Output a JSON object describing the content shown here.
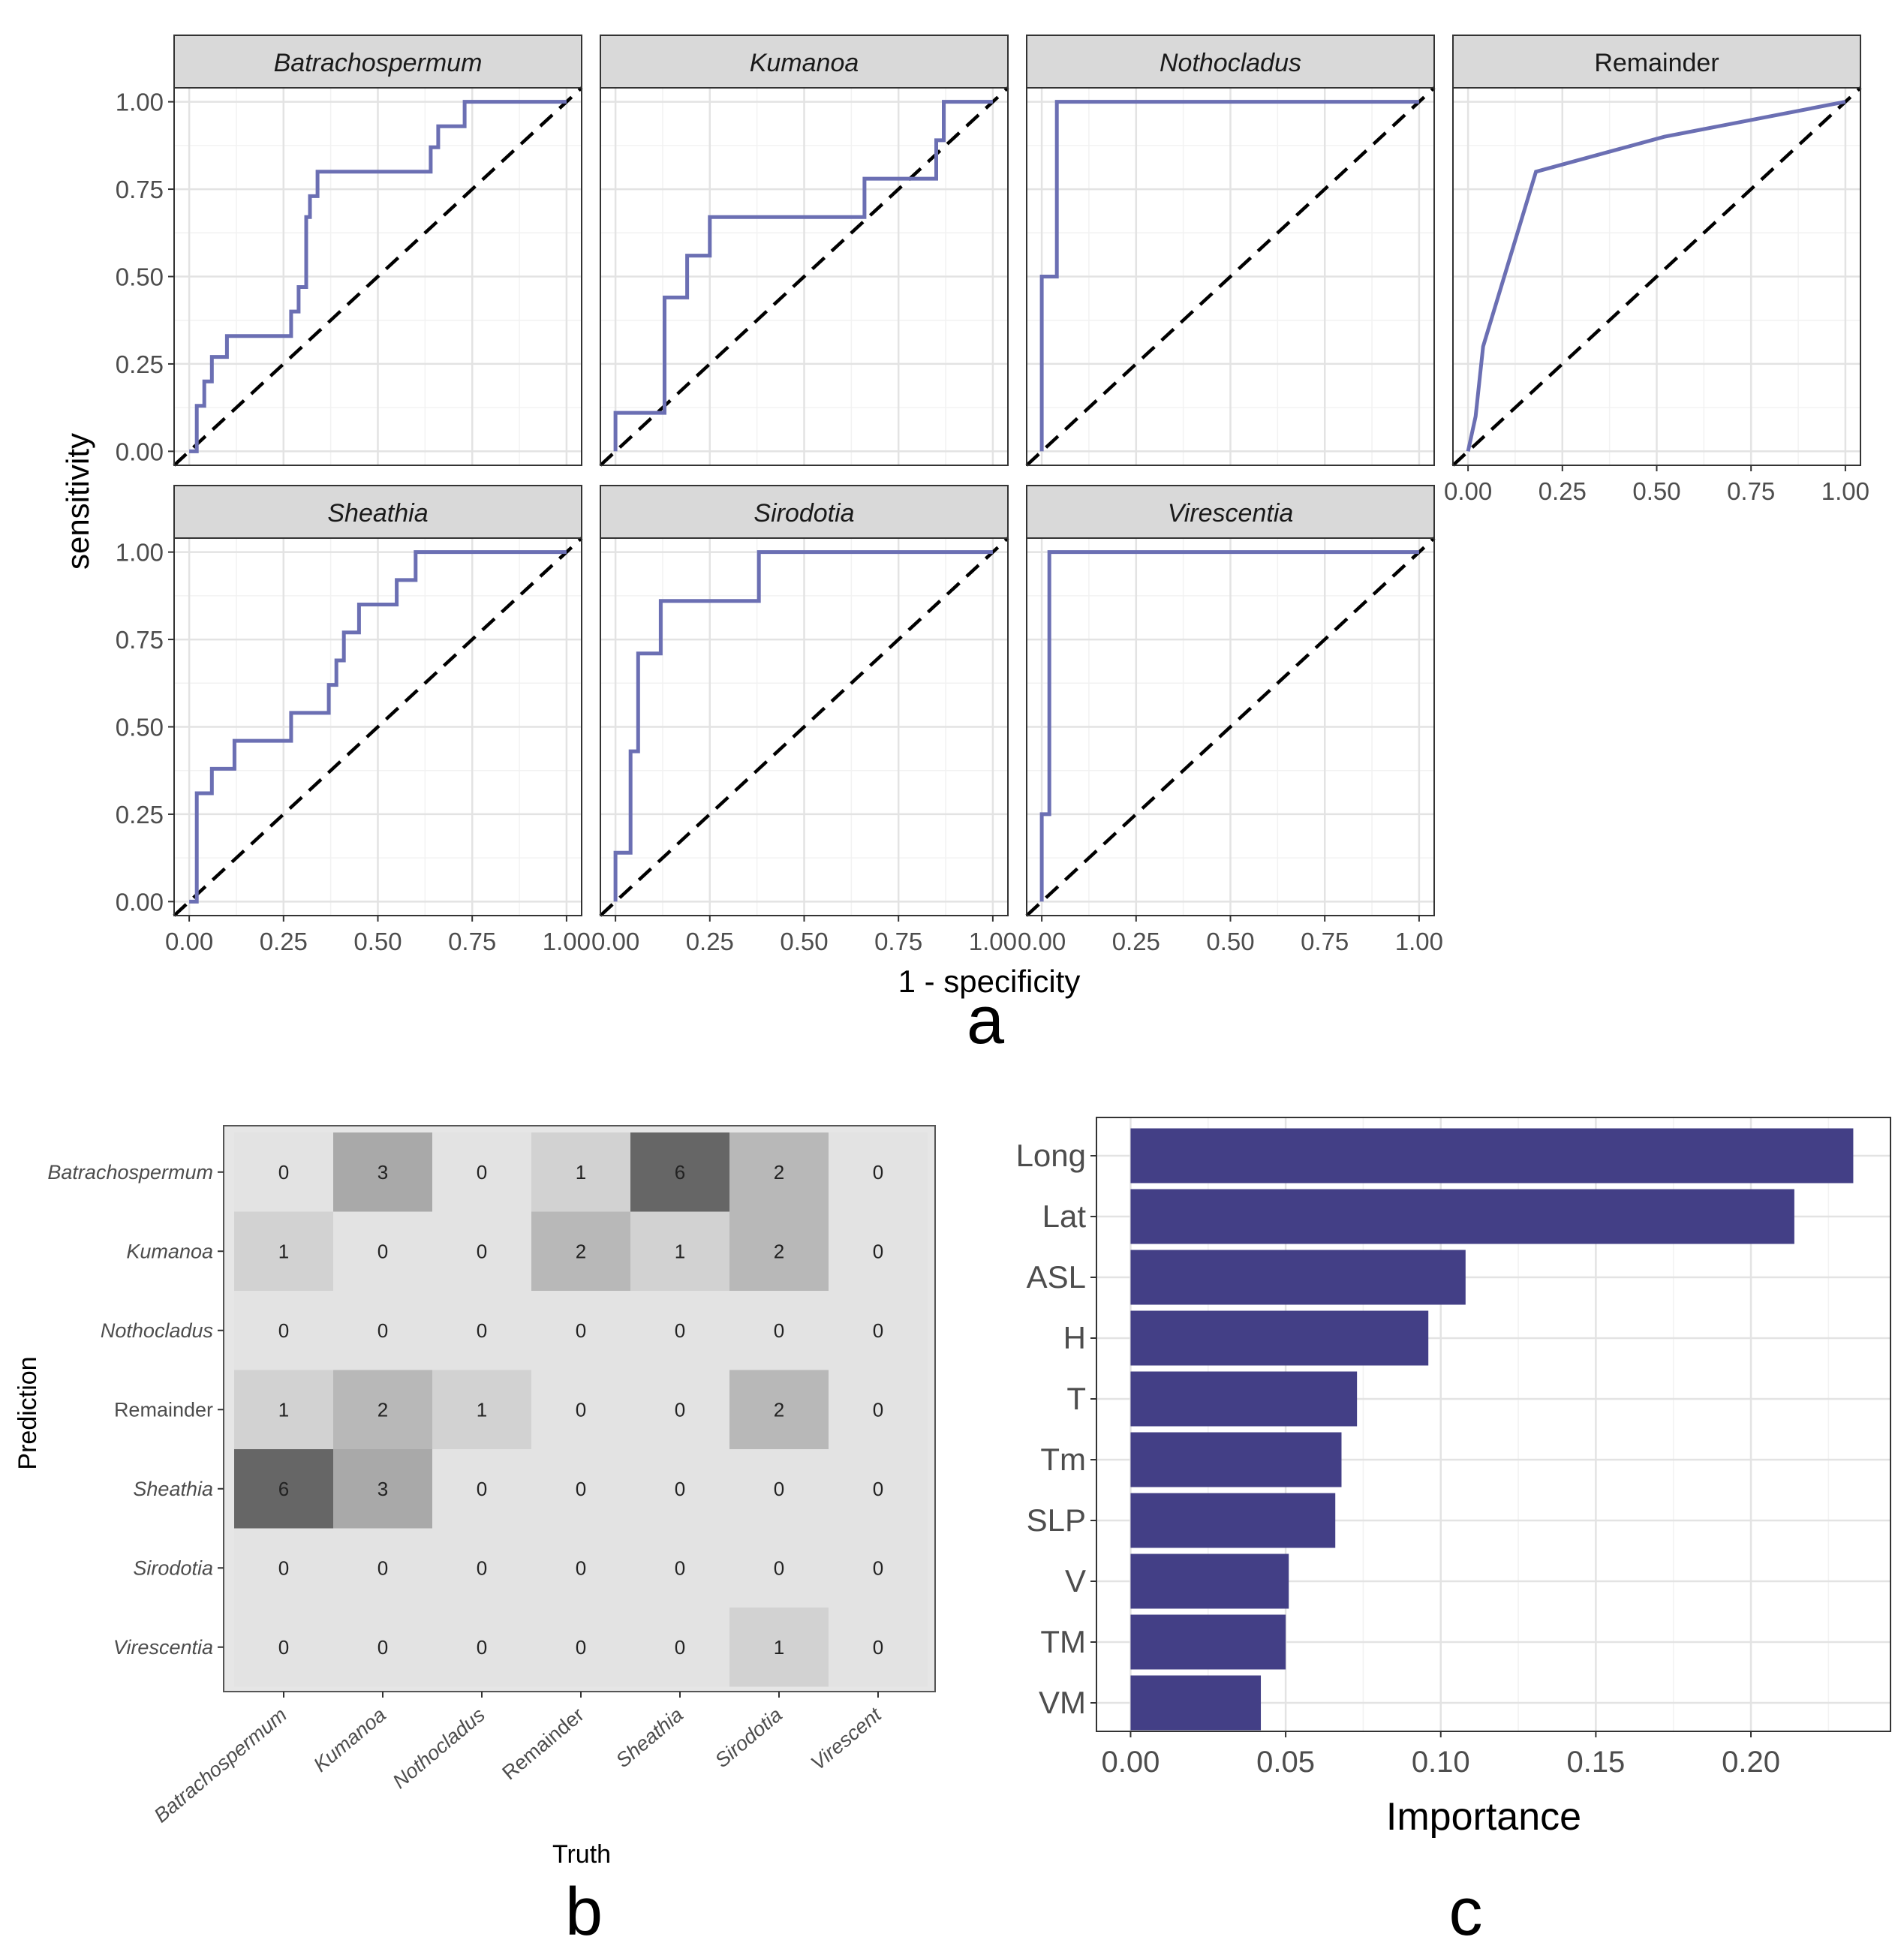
{
  "chart_data": [
    {
      "type": "line",
      "panel_label": "a",
      "xlabel": "1 - specificity",
      "ylabel": "sensitivity",
      "xlim": [
        0,
        1
      ],
      "ylim": [
        0,
        1
      ],
      "xticks": [
        "0.00",
        "0.25",
        "0.50",
        "0.75",
        "1.00"
      ],
      "yticks": [
        "0.00",
        "0.25",
        "0.50",
        "0.75",
        "1.00"
      ],
      "grid": true,
      "reference_line": "dashed diagonal",
      "line_color": "#6b6fb3",
      "facets": [
        {
          "title": "Batrachospermum",
          "italic": true,
          "x": [
            0,
            0.02,
            0.02,
            0.04,
            0.04,
            0.06,
            0.06,
            0.1,
            0.1,
            0.27,
            0.27,
            0.29,
            0.29,
            0.31,
            0.31,
            0.32,
            0.32,
            0.34,
            0.34,
            0.36,
            0.36,
            0.64,
            0.64,
            0.66,
            0.66,
            0.73,
            0.73,
            1
          ],
          "y": [
            0,
            0,
            0.13,
            0.13,
            0.2,
            0.2,
            0.27,
            0.27,
            0.33,
            0.33,
            0.4,
            0.4,
            0.47,
            0.47,
            0.67,
            0.67,
            0.73,
            0.73,
            0.8,
            0.8,
            0.8,
            0.8,
            0.87,
            0.87,
            0.93,
            0.93,
            1,
            1
          ]
        },
        {
          "title": "Kumanoa",
          "italic": true,
          "x": [
            0,
            0,
            0.13,
            0.13,
            0.19,
            0.19,
            0.25,
            0.25,
            0.66,
            0.66,
            0.85,
            0.85,
            0.87,
            0.87,
            1
          ],
          "y": [
            0,
            0.11,
            0.11,
            0.44,
            0.44,
            0.56,
            0.56,
            0.67,
            0.67,
            0.78,
            0.78,
            0.89,
            0.89,
            1,
            1
          ]
        },
        {
          "title": "Nothocladus",
          "italic": true,
          "x": [
            0,
            0,
            0.04,
            0.04,
            1
          ],
          "y": [
            0,
            0.5,
            0.5,
            1,
            1
          ]
        },
        {
          "title": "Remainder",
          "italic": false,
          "x": [
            0,
            0.02,
            0.02,
            0.04,
            0.04,
            0.18,
            0.18,
            0.52,
            0.52,
            1
          ],
          "y": [
            0,
            0.1,
            0.1,
            0.3,
            0.3,
            0.8,
            0.8,
            0.9,
            0.9,
            1
          ]
        },
        {
          "title": "Sheathia",
          "italic": true,
          "x": [
            0,
            0.02,
            0.02,
            0.06,
            0.06,
            0.12,
            0.12,
            0.27,
            0.27,
            0.37,
            0.37,
            0.39,
            0.39,
            0.41,
            0.41,
            0.45,
            0.45,
            0.55,
            0.55,
            0.6,
            0.6,
            1
          ],
          "y": [
            0,
            0,
            0.31,
            0.31,
            0.38,
            0.38,
            0.46,
            0.46,
            0.54,
            0.54,
            0.62,
            0.62,
            0.69,
            0.69,
            0.77,
            0.77,
            0.85,
            0.85,
            0.92,
            0.92,
            1,
            1
          ]
        },
        {
          "title": "Sirodotia",
          "italic": true,
          "x": [
            0,
            0,
            0.04,
            0.04,
            0.06,
            0.06,
            0.12,
            0.12,
            0.38,
            0.38,
            1
          ],
          "y": [
            0,
            0.14,
            0.14,
            0.43,
            0.43,
            0.71,
            0.71,
            0.86,
            0.86,
            1,
            1
          ]
        },
        {
          "title": "Virescentia",
          "italic": true,
          "x": [
            0,
            0,
            0.02,
            0.02,
            1
          ],
          "y": [
            0,
            0.25,
            0.25,
            1,
            1
          ]
        }
      ]
    },
    {
      "type": "heatmap",
      "panel_label": "b",
      "xlabel": "Truth",
      "ylabel": "Prediction",
      "x_categories": [
        "Batrachospermum",
        "Kumanoa",
        "Nothocladus",
        "Remainder",
        "Sheathia",
        "Sirodotia",
        "Virescent"
      ],
      "y_categories": [
        "Batrachospermum",
        "Kumanoa",
        "Nothocladus",
        "Remainder",
        "Sheathia",
        "Sirodotia",
        "Virescentia"
      ],
      "values": [
        [
          0,
          3,
          0,
          1,
          6,
          2,
          0
        ],
        [
          1,
          0,
          0,
          2,
          1,
          2,
          0
        ],
        [
          0,
          0,
          0,
          0,
          0,
          0,
          0
        ],
        [
          1,
          2,
          1,
          0,
          0,
          2,
          0
        ],
        [
          6,
          3,
          0,
          0,
          0,
          0,
          0
        ],
        [
          0,
          0,
          0,
          0,
          0,
          0,
          0
        ],
        [
          0,
          0,
          0,
          0,
          0,
          1,
          0
        ]
      ]
    },
    {
      "type": "bar",
      "orientation": "horizontal",
      "panel_label": "c",
      "xlabel": "Importance",
      "ylabel": "",
      "categories": [
        "Long",
        "Lat",
        "ASL",
        "H",
        "T",
        "Tm",
        "SLP",
        "V",
        "TM",
        "VM"
      ],
      "values": [
        0.233,
        0.214,
        0.108,
        0.096,
        0.073,
        0.068,
        0.066,
        0.051,
        0.05,
        0.042
      ],
      "xlim": [
        0,
        0.245
      ],
      "xticks": [
        "0.00",
        "0.05",
        "0.10",
        "0.15",
        "0.20"
      ],
      "color": "#433f86",
      "grid": true
    }
  ]
}
